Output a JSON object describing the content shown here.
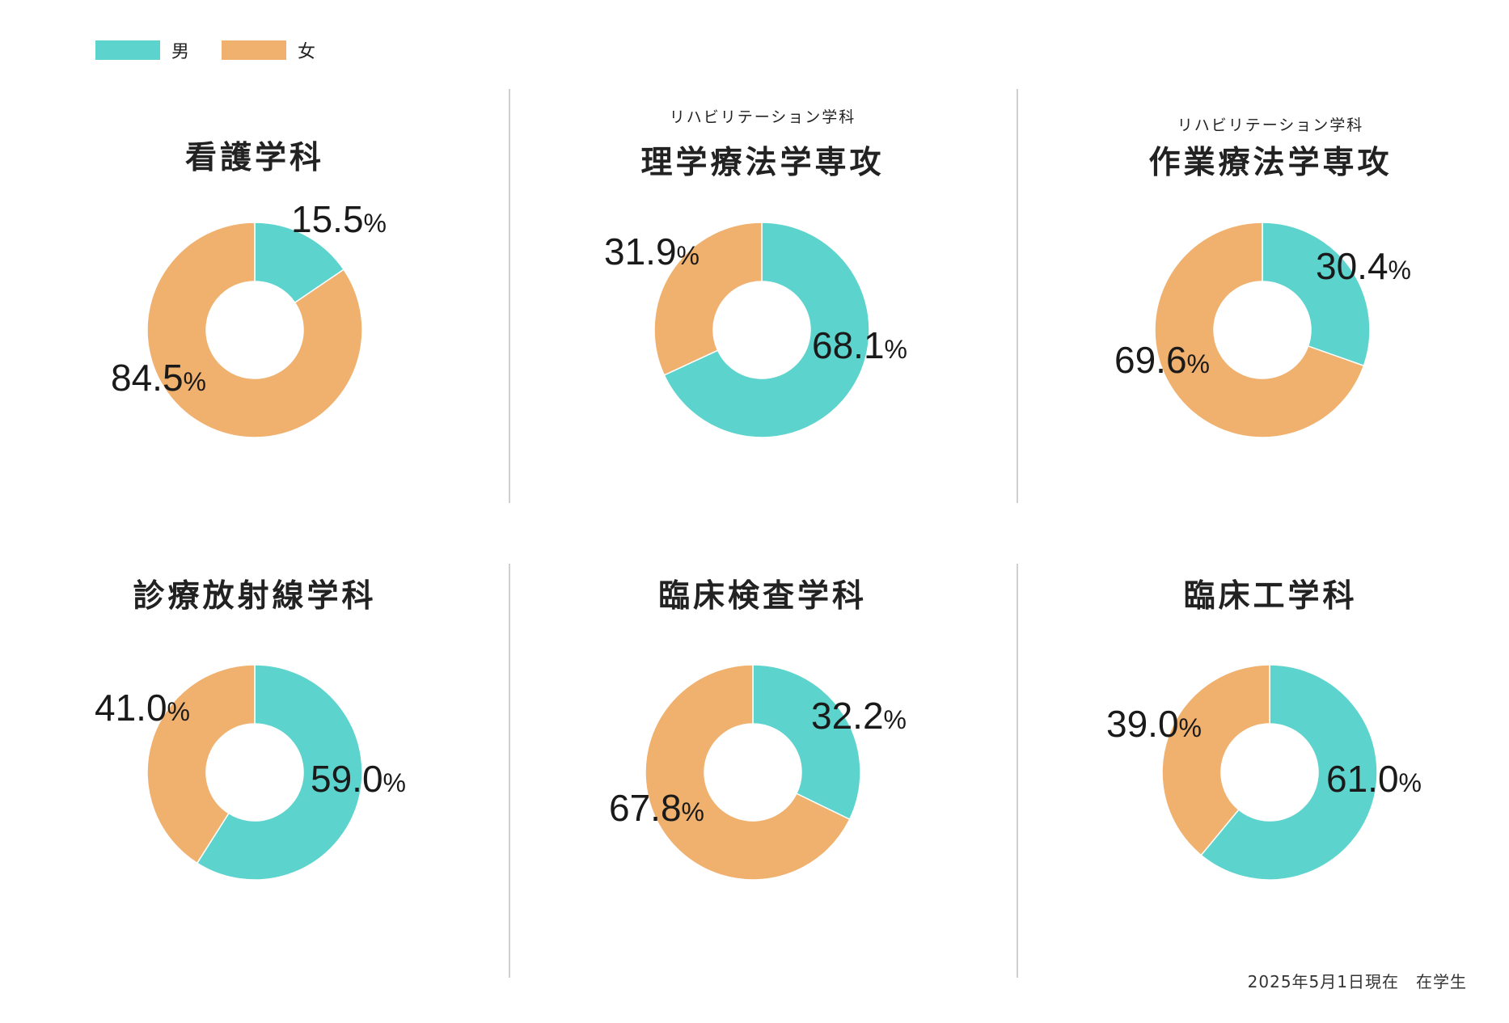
{
  "legend": [
    {
      "label": "男",
      "color": "#5dd3cd"
    },
    {
      "label": "女",
      "color": "#f0b06e"
    }
  ],
  "footer_note": "2025年5月1日現在　在学生",
  "chart_data": [
    {
      "type": "pie",
      "subtitle": "",
      "title": "看護学科",
      "labels": [
        "男",
        "女"
      ],
      "values": [
        15.5,
        84.5
      ],
      "colors": [
        "#5dd3cd",
        "#f0b06e"
      ],
      "unit": "%"
    },
    {
      "type": "pie",
      "subtitle": "リハビリテーション学科",
      "title": "理学療法学専攻",
      "labels": [
        "男",
        "女"
      ],
      "values": [
        68.1,
        31.9
      ],
      "colors": [
        "#5dd3cd",
        "#f0b06e"
      ],
      "unit": "%"
    },
    {
      "type": "pie",
      "subtitle": "リハビリテーション学科",
      "title": "作業療法学専攻",
      "labels": [
        "男",
        "女"
      ],
      "values": [
        30.4,
        69.6
      ],
      "colors": [
        "#5dd3cd",
        "#f0b06e"
      ],
      "unit": "%"
    },
    {
      "type": "pie",
      "subtitle": "",
      "title": "診療放射線学科",
      "labels": [
        "男",
        "女"
      ],
      "values": [
        59.0,
        41.0
      ],
      "colors": [
        "#5dd3cd",
        "#f0b06e"
      ],
      "unit": "%"
    },
    {
      "type": "pie",
      "subtitle": "",
      "title": "臨床検査学科",
      "labels": [
        "男",
        "女"
      ],
      "values": [
        32.2,
        67.8
      ],
      "colors": [
        "#5dd3cd",
        "#f0b06e"
      ],
      "unit": "%"
    },
    {
      "type": "pie",
      "subtitle": "",
      "title": "臨床工学科",
      "labels": [
        "男",
        "女"
      ],
      "values": [
        61.0,
        39.0
      ],
      "colors": [
        "#5dd3cd",
        "#f0b06e"
      ],
      "unit": "%"
    }
  ]
}
